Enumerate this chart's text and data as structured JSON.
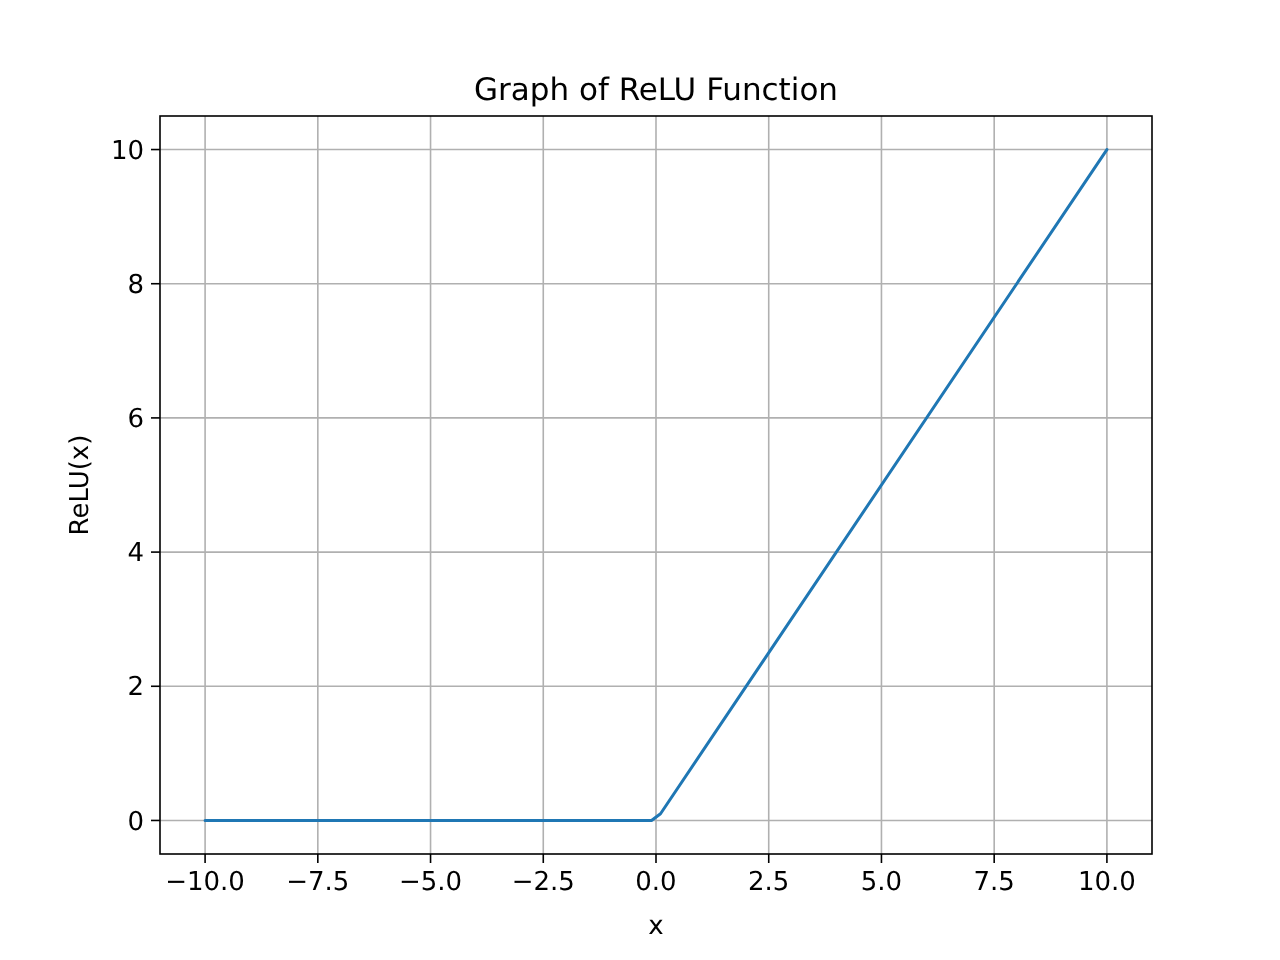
{
  "chart_data": {
    "type": "line",
    "title": "Graph of ReLU Function",
    "xlabel": "x",
    "ylabel": "ReLU(x)",
    "x": [
      -10,
      -0.1,
      0.1,
      10
    ],
    "series": [
      {
        "color": "#1f77b4",
        "values": [
          0,
          0,
          0.1,
          10
        ]
      }
    ],
    "xlim": [
      -11,
      11
    ],
    "ylim": [
      -0.5,
      10.5
    ],
    "xticks": [
      {
        "value": -10,
        "label": "−10.0"
      },
      {
        "value": -7.5,
        "label": "−7.5"
      },
      {
        "value": -5,
        "label": "−5.0"
      },
      {
        "value": -2.5,
        "label": "−2.5"
      },
      {
        "value": 0,
        "label": "0.0"
      },
      {
        "value": 2.5,
        "label": "2.5"
      },
      {
        "value": 5,
        "label": "5.0"
      },
      {
        "value": 7.5,
        "label": "7.5"
      },
      {
        "value": 10,
        "label": "10.0"
      }
    ],
    "yticks": [
      0,
      2,
      4,
      6,
      8,
      10
    ],
    "grid": true,
    "line_style": "solid"
  }
}
